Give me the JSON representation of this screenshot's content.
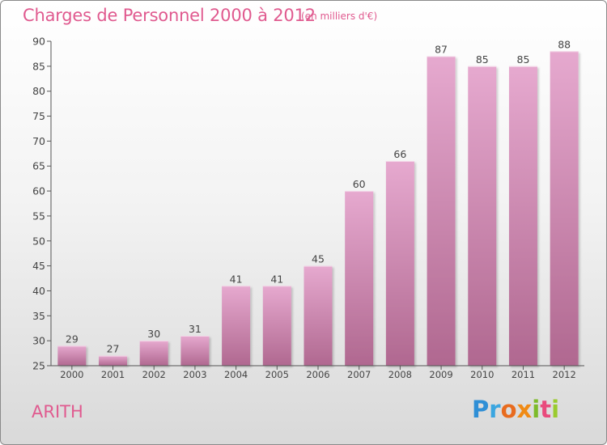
{
  "header": {
    "title": "Charges de Personnel 2000 à 2012",
    "subtitle": "(en milliers d'€)"
  },
  "footer": {
    "commune": "ARITH",
    "brand": "Proxiti"
  },
  "colors": {
    "title": "#e05a8f",
    "bar_top": "#e6a9cf",
    "bar_bottom": "#b06890",
    "axis": "#555555"
  },
  "chart_data": {
    "type": "bar",
    "categories": [
      "2000",
      "2001",
      "2002",
      "2003",
      "2004",
      "2005",
      "2006",
      "2007",
      "2008",
      "2009",
      "2010",
      "2011",
      "2012"
    ],
    "values": [
      29,
      27,
      30,
      31,
      41,
      41,
      45,
      60,
      66,
      87,
      85,
      85,
      88
    ],
    "title": "Charges de Personnel 2000 à 2012",
    "subtitle": "(en milliers d'€)",
    "ylim": [
      25,
      90
    ],
    "yticks": [
      25,
      30,
      35,
      40,
      45,
      50,
      55,
      60,
      65,
      70,
      75,
      80,
      85,
      90
    ],
    "grid": false,
    "legend": "none"
  }
}
